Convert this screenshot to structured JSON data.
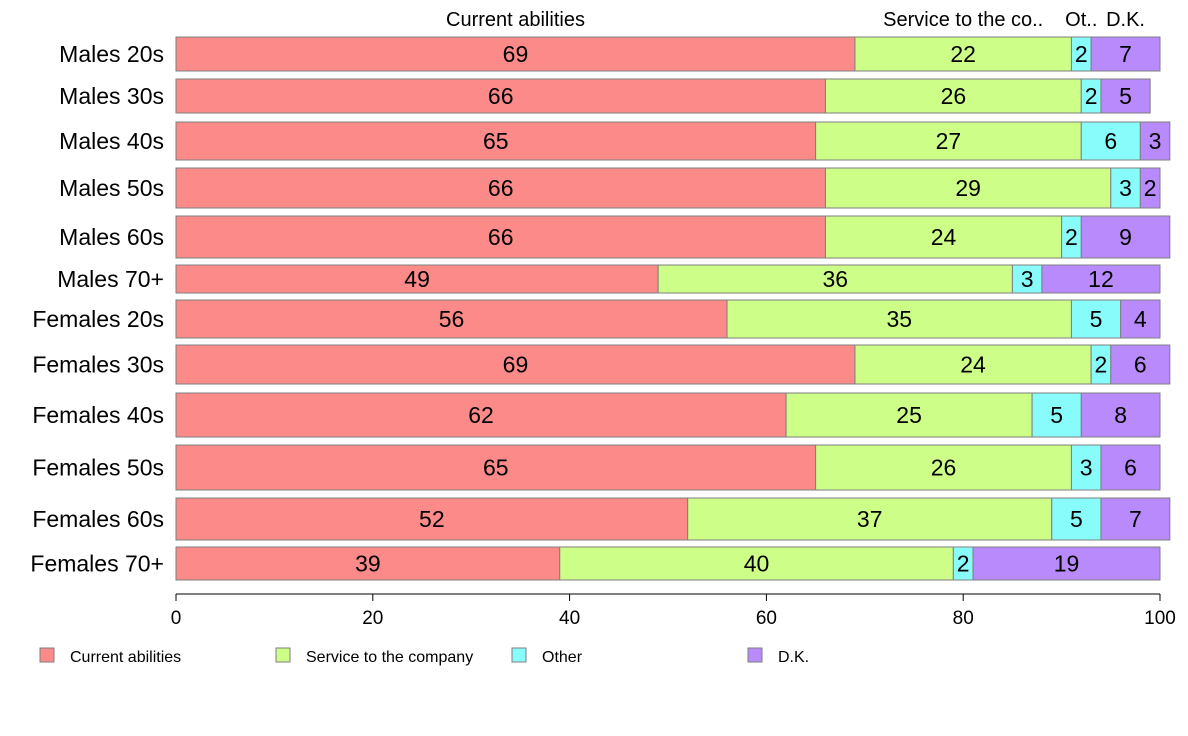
{
  "chart_data": {
    "type": "bar",
    "orientation": "horizontal",
    "stacked": true,
    "categories": [
      "Males 20s",
      "Males 30s",
      "Males 40s",
      "Males 50s",
      "Males 60s",
      "Males 70+",
      "Females 20s",
      "Females 30s",
      "Females 40s",
      "Females 50s",
      "Females 60s",
      "Females 70+"
    ],
    "series": [
      {
        "name": "Current abilities",
        "color": "#fb8a89",
        "values": [
          69,
          66,
          65,
          66,
          66,
          49,
          56,
          69,
          62,
          65,
          52,
          39
        ]
      },
      {
        "name": "Service to the company",
        "color": "#ccfe88",
        "values": [
          22,
          26,
          27,
          29,
          24,
          36,
          35,
          24,
          25,
          26,
          37,
          40
        ]
      },
      {
        "name": "Other",
        "color": "#88fbfb",
        "values": [
          2,
          2,
          6,
          3,
          2,
          3,
          5,
          2,
          5,
          3,
          5,
          2
        ]
      },
      {
        "name": "D.K.",
        "color": "#b98afb",
        "values": [
          7,
          5,
          3,
          2,
          9,
          12,
          4,
          6,
          8,
          6,
          7,
          19
        ]
      }
    ],
    "top_labels": [
      "Current abilities",
      "Service to the co..",
      "Ot..",
      "D.K."
    ],
    "x_ticks": [
      0,
      20,
      40,
      60,
      80,
      100
    ],
    "xlim": [
      0,
      100
    ],
    "grid": false,
    "legend_position": "bottom"
  }
}
